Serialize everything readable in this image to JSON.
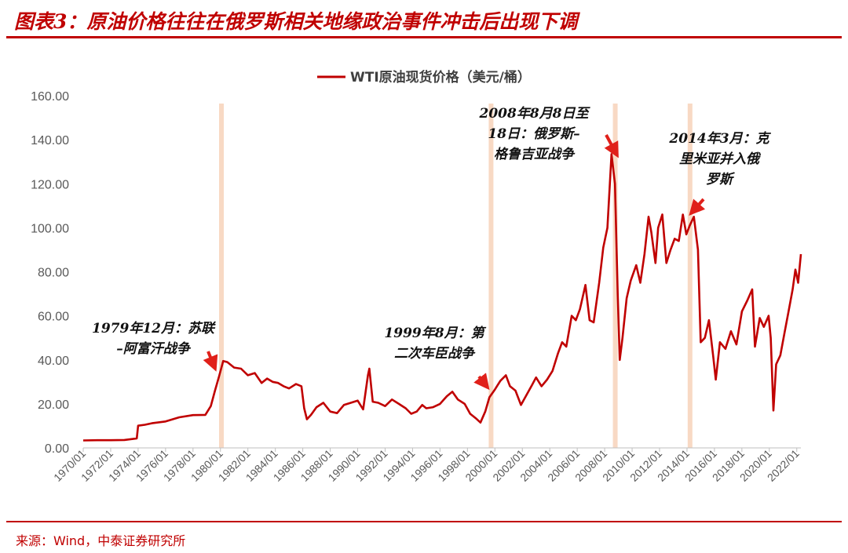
{
  "header": {
    "title": "图表3：原油价格往往在俄罗斯相关地缘政治事件冲击后出现下调"
  },
  "footer": {
    "source": "来源：Wind，中泰证券研究所"
  },
  "colors": {
    "series": "#c00000",
    "band": "#f8d9c4",
    "arrow": "#e0201a",
    "rule": "#c00000"
  },
  "chart_data": {
    "type": "line",
    "title": "",
    "xlabel": "",
    "ylabel": "",
    "ylim": [
      0,
      160
    ],
    "yticks": [
      "0.00",
      "20.00",
      "40.00",
      "60.00",
      "80.00",
      "100.00",
      "120.00",
      "140.00",
      "160.00"
    ],
    "xlim": [
      1970.0,
      2022.3
    ],
    "xticks": [
      "1970/01",
      "1972/01",
      "1974/01",
      "1976/01",
      "1978/01",
      "1980/01",
      "1982/01",
      "1984/01",
      "1986/01",
      "1988/01",
      "1990/01",
      "1992/01",
      "1994/01",
      "1996/01",
      "1998/01",
      "2000/01",
      "2002/01",
      "2004/01",
      "2006/01",
      "2008/01",
      "2010/01",
      "2012/01",
      "2014/01",
      "2016/01",
      "2018/01",
      "2020/01",
      "2022/01"
    ],
    "grid": false,
    "legend": "top-center",
    "series": [
      {
        "name": "WTI原油现货价格（美元/桶）",
        "x": [
          1970.0,
          1971.0,
          1972.0,
          1973.0,
          1973.9,
          1974.0,
          1974.5,
          1975.0,
          1976.0,
          1977.0,
          1978.0,
          1978.9,
          1979.3,
          1979.6,
          1979.9,
          1980.2,
          1980.5,
          1981.0,
          1981.5,
          1982.0,
          1982.5,
          1983.0,
          1983.4,
          1983.8,
          1984.2,
          1984.6,
          1985.0,
          1985.5,
          1985.9,
          1986.1,
          1986.3,
          1986.6,
          1987.0,
          1987.5,
          1988.0,
          1988.5,
          1989.0,
          1989.5,
          1990.0,
          1990.4,
          1990.75,
          1990.85,
          1991.1,
          1991.5,
          1992.0,
          1992.5,
          1993.0,
          1993.5,
          1993.9,
          1994.3,
          1994.7,
          1995.0,
          1995.5,
          1996.0,
          1996.5,
          1996.9,
          1997.3,
          1997.8,
          1998.2,
          1998.6,
          1998.95,
          1999.3,
          1999.6,
          2000.0,
          2000.4,
          2000.8,
          2001.1,
          2001.5,
          2001.9,
          2002.3,
          2002.7,
          2003.0,
          2003.4,
          2003.8,
          2004.2,
          2004.6,
          2004.9,
          2005.2,
          2005.6,
          2005.9,
          2006.2,
          2006.6,
          2006.9,
          2007.2,
          2007.6,
          2007.9,
          2008.2,
          2008.5,
          2008.75,
          2008.95,
          2009.1,
          2009.3,
          2009.6,
          2009.9,
          2010.3,
          2010.6,
          2010.9,
          2011.2,
          2011.4,
          2011.7,
          2011.9,
          2012.2,
          2012.5,
          2012.8,
          2013.1,
          2013.4,
          2013.7,
          2013.95,
          2014.2,
          2014.5,
          2014.8,
          2015.0,
          2015.3,
          2015.6,
          2015.9,
          2016.1,
          2016.4,
          2016.8,
          2017.2,
          2017.6,
          2018.0,
          2018.4,
          2018.75,
          2018.95,
          2019.3,
          2019.6,
          2019.95,
          2020.1,
          2020.3,
          2020.5,
          2020.8,
          2021.1,
          2021.4,
          2021.7,
          2021.9,
          2022.1,
          2022.3
        ],
        "values": [
          3.4,
          3.5,
          3.5,
          3.6,
          4.3,
          10.1,
          10.5,
          11.2,
          12.0,
          13.9,
          14.9,
          15.0,
          19.0,
          26.0,
          32.5,
          39.5,
          39.0,
          36.5,
          36.0,
          33.0,
          34.0,
          29.5,
          31.5,
          30.0,
          29.5,
          28.0,
          27.0,
          29.0,
          28.0,
          18.0,
          13.0,
          15.0,
          18.5,
          20.5,
          16.5,
          15.8,
          19.5,
          20.5,
          21.5,
          17.5,
          33.0,
          36.0,
          21.0,
          20.5,
          19.0,
          22.0,
          20.0,
          18.0,
          15.5,
          16.5,
          19.5,
          18.0,
          18.5,
          20.0,
          23.5,
          25.5,
          22.0,
          20.0,
          15.5,
          13.5,
          11.5,
          16.5,
          23.0,
          26.5,
          30.5,
          33.0,
          28.0,
          26.0,
          19.5,
          24.0,
          28.5,
          32.0,
          28.0,
          31.0,
          35.0,
          43.0,
          48.0,
          46.0,
          60.0,
          58.0,
          63.0,
          74.0,
          58.0,
          57.0,
          75.0,
          91.0,
          100.0,
          133.5,
          120.0,
          70.0,
          40.0,
          50.0,
          68.0,
          76.0,
          83.0,
          75.0,
          88.0,
          105.0,
          98.0,
          84.0,
          100.0,
          106.0,
          84.0,
          90.0,
          95.0,
          94.0,
          106.0,
          97.0,
          101.0,
          105.0,
          90.0,
          48.0,
          50.0,
          58.0,
          42.0,
          31.0,
          48.0,
          45.0,
          53.0,
          47.0,
          62.0,
          67.0,
          72.0,
          46.0,
          59.0,
          55.0,
          60.0,
          50.0,
          17.0,
          38.0,
          42.0,
          52.0,
          62.0,
          72.0,
          81.0,
          75.0,
          88.0
        ]
      }
    ],
    "event_bands": [
      {
        "from": 1979.9,
        "to": 1980.15
      },
      {
        "from": 1999.55,
        "to": 1999.8
      },
      {
        "from": 2008.6,
        "to": 2008.85
      },
      {
        "from": 2014.05,
        "to": 2014.3
      }
    ],
    "annotations": [
      {
        "lines": [
          "1979年12月：苏联",
          "–阿富汗战争"
        ],
        "date": 1979.9,
        "value": 32
      },
      {
        "lines": [
          "1999年8月：第",
          "二次车臣战争"
        ],
        "date": 1999.6,
        "value": 24
      },
      {
        "lines": [
          "2008年8月8日至",
          "18日：俄罗斯–",
          "格鲁吉亚战争"
        ],
        "date": 2008.6,
        "value": 132
      },
      {
        "lines": [
          "2014年3月：克",
          "里米亚并入俄",
          "罗斯"
        ],
        "date": 2014.2,
        "value": 105
      }
    ]
  }
}
